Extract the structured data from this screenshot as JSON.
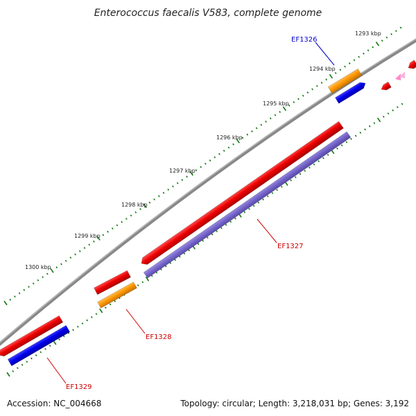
{
  "title": "Enterococcus faecalis V583, complete genome",
  "footer": {
    "accession": "Accession: NC_004668",
    "summary": "Topology: circular; Length: 3,218,031 bp; Genes: 3,192"
  },
  "ruler": {
    "labels": [
      "1293 kbp",
      "1294 kbp",
      "1295 kbp",
      "1296 kbp",
      "1297 kbp",
      "1298 kbp",
      "1299 kbp",
      "1300 kbp"
    ]
  },
  "genes": [
    {
      "name": "EF1326",
      "color": "#0000cc"
    },
    {
      "name": "EF1327",
      "color": "#cc0000"
    },
    {
      "name": "EF1328",
      "color": "#cc0000"
    },
    {
      "name": "EF1329",
      "color": "#cc0000"
    }
  ],
  "colors": {
    "backbone": "#888888",
    "cds_red": "#ee0000",
    "cds_orange": "#ff9900",
    "cds_blue": "#0000ee",
    "cds_purple": "#7766cc",
    "ruler_dots": "#117711",
    "pink": "#ff88cc"
  }
}
